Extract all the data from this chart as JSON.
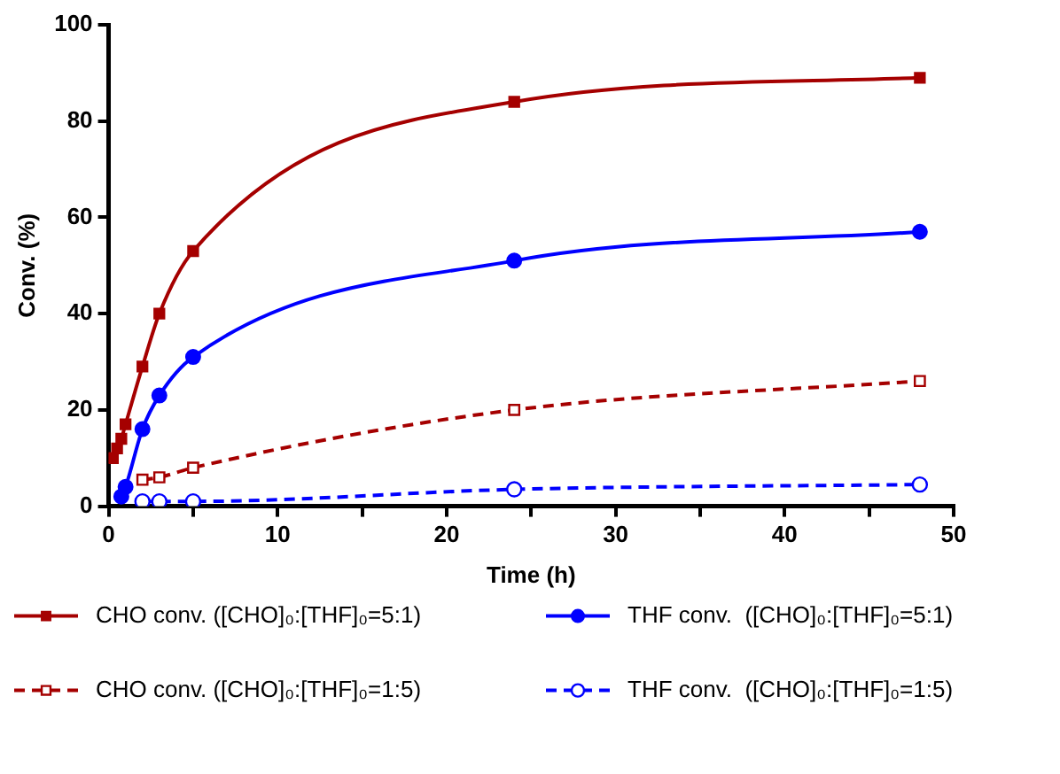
{
  "chart_data": {
    "type": "line",
    "xlabel": "Time (h)",
    "ylabel": "Conv. (%)",
    "xlim": [
      0,
      50
    ],
    "xticks": [
      0,
      {
        "value": 5,
        "label": null
      },
      10,
      {
        "value": 15,
        "label": null
      },
      20,
      {
        "value": 25,
        "label": null
      },
      30,
      {
        "value": 35,
        "label": null
      },
      40,
      {
        "value": 45,
        "label": null
      },
      50
    ],
    "ylim": [
      0,
      100
    ],
    "yticks": [
      0,
      20,
      40,
      60,
      80,
      100
    ],
    "grid": false,
    "legend": "bottom",
    "series": [
      {
        "name": "CHO conv. ([CHO]₀:[THF]₀=5:1)",
        "color": "#a50000",
        "marker": "square",
        "line_style": "solid",
        "x": [
          0.25,
          0.5,
          0.75,
          1,
          2,
          3,
          5,
          24,
          48
        ],
        "values": [
          10,
          12,
          14,
          17,
          29,
          40,
          53,
          84,
          89
        ]
      },
      {
        "name": "THF conv.  ([CHO]₀:[THF]₀=5:1)",
        "color": "#0000ff",
        "marker": "circle",
        "line_style": "solid",
        "x": [
          0.75,
          1,
          2,
          3,
          5,
          24,
          48
        ],
        "values": [
          2,
          4,
          16,
          23,
          31,
          51,
          57
        ]
      },
      {
        "name": "CHO conv. ([CHO]₀:[THF]₀=1:5)",
        "color": "#a50000",
        "marker": "square",
        "line_style": "dashed",
        "x": [
          2,
          3,
          5,
          24,
          48
        ],
        "values": [
          5.5,
          6,
          8,
          20,
          26
        ]
      },
      {
        "name": "THF conv.  ([CHO]₀:[THF]₀=1:5)",
        "color": "#0000ff",
        "marker": "circle",
        "line_style": "dashed",
        "x": [
          2,
          3,
          5,
          24,
          48
        ],
        "values": [
          1,
          1,
          1,
          3.5,
          4.5
        ]
      }
    ]
  }
}
